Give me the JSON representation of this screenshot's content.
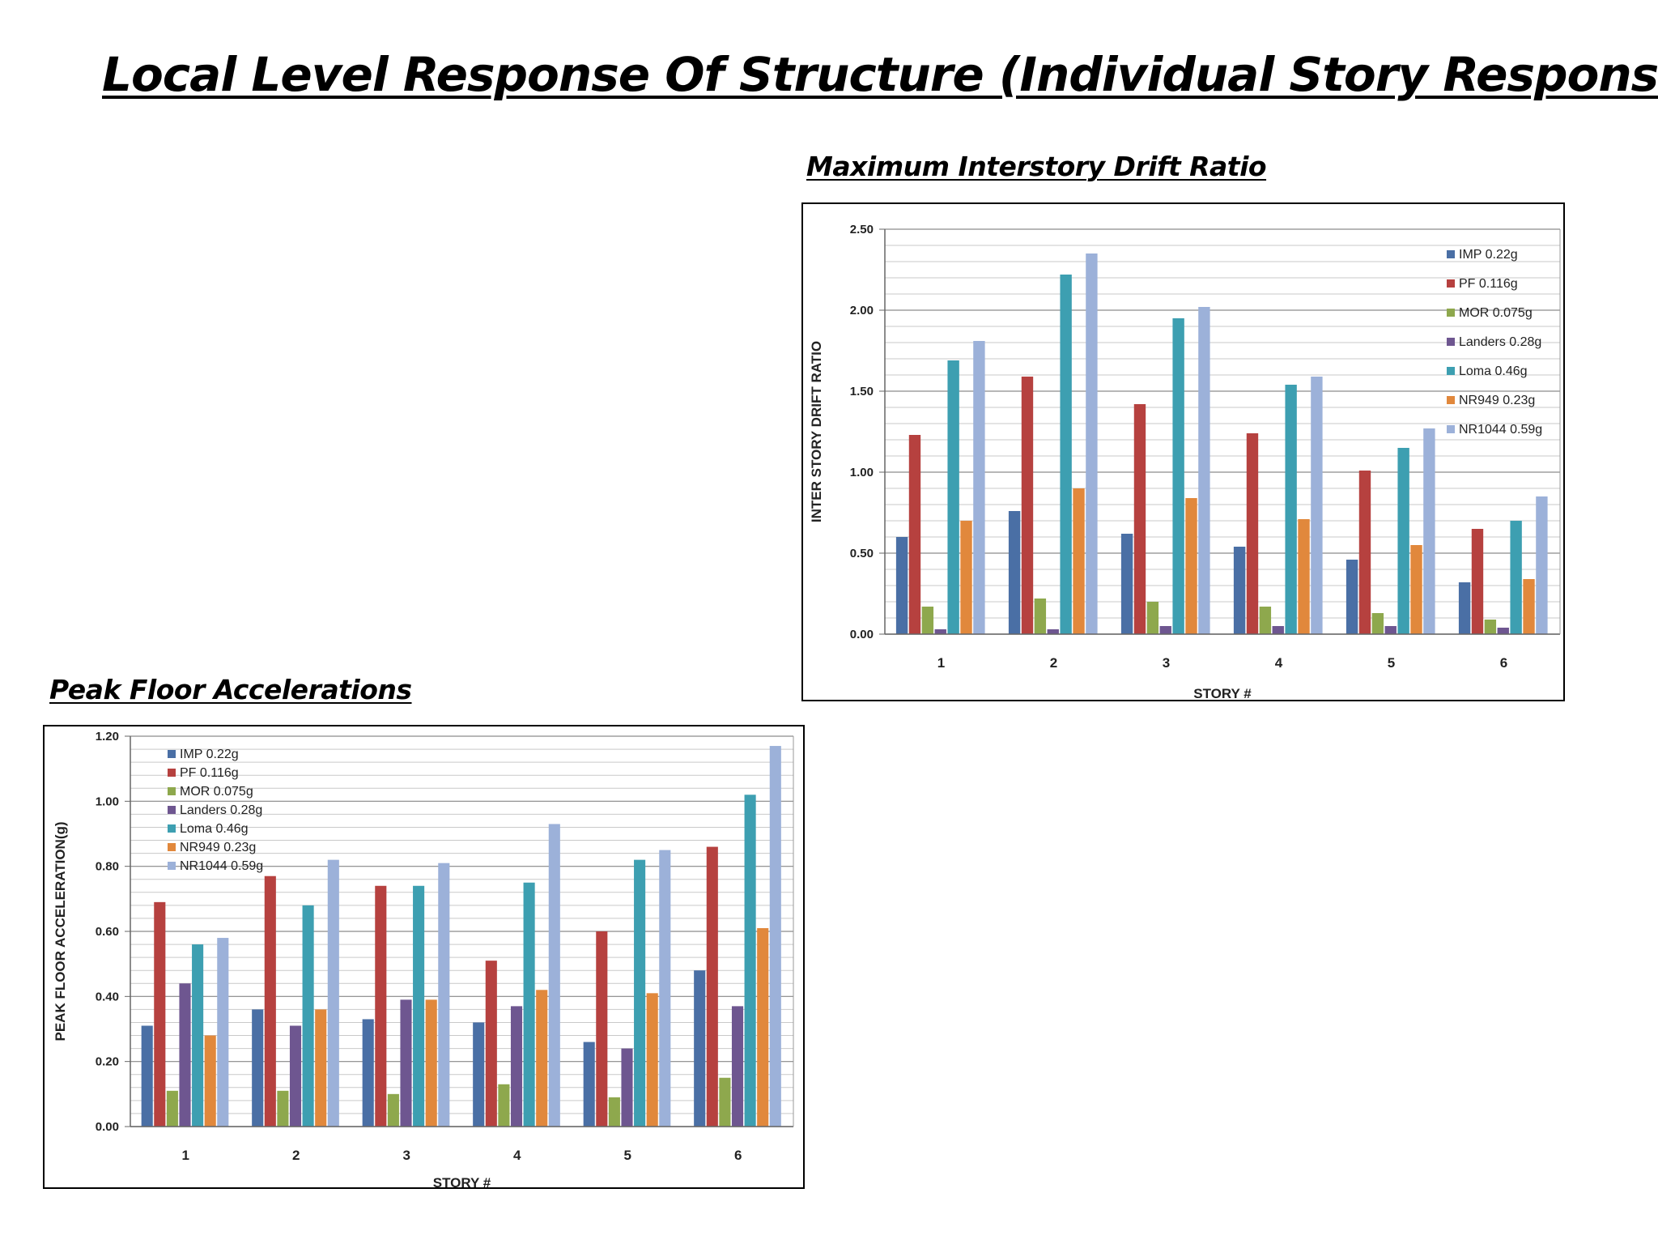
{
  "page": {
    "title": "Local Level Response Of Structure (Individual Story Response)"
  },
  "charts": {
    "drift": {
      "section_title": "Maximum Interstory Drift Ratio",
      "type": "bar",
      "ylabel": "INTER STORY DRIFT RATIO",
      "xlabel": "STORY #",
      "ylim": [
        0,
        2.5
      ],
      "yticks": [
        0,
        0.5,
        1.0,
        1.5,
        2.0,
        2.5
      ],
      "tick_decimals": 2,
      "grid": true,
      "legend": "top-right",
      "categories": [
        "1",
        "2",
        "3",
        "4",
        "5",
        "6"
      ],
      "series": [
        {
          "name": "IMP 0.22g",
          "color": "#4a6fa5",
          "values": [
            0.6,
            0.76,
            0.62,
            0.54,
            0.46,
            0.32
          ]
        },
        {
          "name": "PF 0.116g",
          "color": "#b6413f",
          "values": [
            1.23,
            1.59,
            1.42,
            1.24,
            1.01,
            0.65
          ]
        },
        {
          "name": "MOR 0.075g",
          "color": "#8ea84d",
          "values": [
            0.17,
            0.22,
            0.2,
            0.17,
            0.13,
            0.09
          ]
        },
        {
          "name": "Landers 0.28g",
          "color": "#6e5690",
          "values": [
            0.03,
            0.03,
            0.05,
            0.05,
            0.05,
            0.04
          ]
        },
        {
          "name": "Loma 0.46g",
          "color": "#3d9fb1",
          "values": [
            1.69,
            2.22,
            1.95,
            1.54,
            1.15,
            0.7
          ]
        },
        {
          "name": "NR949 0.23g",
          "color": "#e1883c",
          "values": [
            0.7,
            0.9,
            0.84,
            0.71,
            0.55,
            0.34
          ]
        },
        {
          "name": "NR1044 0.59g",
          "color": "#9cb1d9",
          "values": [
            1.81,
            2.35,
            2.02,
            1.59,
            1.27,
            0.85
          ]
        }
      ]
    },
    "pfa": {
      "section_title": "Peak Floor Accelerations",
      "type": "bar",
      "ylabel": "PEAK FLOOR ACCELERATION(g)",
      "xlabel": "STORY #",
      "ylim": [
        0,
        1.2
      ],
      "yticks": [
        0,
        0.2,
        0.4,
        0.6,
        0.8,
        1.0,
        1.2
      ],
      "tick_decimals": 2,
      "grid": true,
      "legend": "top-left",
      "categories": [
        "1",
        "2",
        "3",
        "4",
        "5",
        "6"
      ],
      "series": [
        {
          "name": "IMP 0.22g",
          "color": "#4a6fa5",
          "values": [
            0.31,
            0.36,
            0.33,
            0.32,
            0.26,
            0.48
          ]
        },
        {
          "name": "PF 0.116g",
          "color": "#b6413f",
          "values": [
            0.69,
            0.77,
            0.74,
            0.51,
            0.6,
            0.86
          ]
        },
        {
          "name": "MOR 0.075g",
          "color": "#8ea84d",
          "values": [
            0.11,
            0.11,
            0.1,
            0.13,
            0.09,
            0.15
          ]
        },
        {
          "name": "Landers 0.28g",
          "color": "#6e5690",
          "values": [
            0.44,
            0.31,
            0.39,
            0.37,
            0.24,
            0.37
          ]
        },
        {
          "name": "Loma 0.46g",
          "color": "#3d9fb1",
          "values": [
            0.56,
            0.68,
            0.74,
            0.75,
            0.82,
            1.02
          ]
        },
        {
          "name": "NR949 0.23g",
          "color": "#e1883c",
          "values": [
            0.28,
            0.36,
            0.39,
            0.42,
            0.41,
            0.61
          ]
        },
        {
          "name": "NR1044 0.59g",
          "color": "#9cb1d9",
          "values": [
            0.58,
            0.82,
            0.81,
            0.93,
            0.85,
            1.17
          ]
        }
      ]
    }
  },
  "chart_data": [
    {
      "type": "bar",
      "title": "Maximum Interstory Drift Ratio",
      "xlabel": "STORY #",
      "ylabel": "INTER STORY DRIFT RATIO",
      "ylim": [
        0,
        2.5
      ],
      "categories": [
        "1",
        "2",
        "3",
        "4",
        "5",
        "6"
      ],
      "series": [
        {
          "name": "IMP 0.22g",
          "values": [
            0.6,
            0.76,
            0.62,
            0.54,
            0.46,
            0.32
          ]
        },
        {
          "name": "PF 0.116g",
          "values": [
            1.23,
            1.59,
            1.42,
            1.24,
            1.01,
            0.65
          ]
        },
        {
          "name": "MOR 0.075g",
          "values": [
            0.17,
            0.22,
            0.2,
            0.17,
            0.13,
            0.09
          ]
        },
        {
          "name": "Landers 0.28g",
          "values": [
            0.03,
            0.03,
            0.05,
            0.05,
            0.05,
            0.04
          ]
        },
        {
          "name": "Loma 0.46g",
          "values": [
            1.69,
            2.22,
            1.95,
            1.54,
            1.15,
            0.7
          ]
        },
        {
          "name": "NR949 0.23g",
          "values": [
            0.7,
            0.9,
            0.84,
            0.71,
            0.55,
            0.34
          ]
        },
        {
          "name": "NR1044 0.59g",
          "values": [
            1.81,
            2.35,
            2.02,
            1.59,
            1.27,
            0.85
          ]
        }
      ]
    },
    {
      "type": "bar",
      "title": "Peak Floor Accelerations",
      "xlabel": "STORY #",
      "ylabel": "PEAK FLOOR ACCELERATION(g)",
      "ylim": [
        0,
        1.2
      ],
      "categories": [
        "1",
        "2",
        "3",
        "4",
        "5",
        "6"
      ],
      "series": [
        {
          "name": "IMP 0.22g",
          "values": [
            0.31,
            0.36,
            0.33,
            0.32,
            0.26,
            0.48
          ]
        },
        {
          "name": "PF 0.116g",
          "values": [
            0.69,
            0.77,
            0.74,
            0.51,
            0.6,
            0.86
          ]
        },
        {
          "name": "MOR 0.075g",
          "values": [
            0.11,
            0.11,
            0.1,
            0.13,
            0.09,
            0.15
          ]
        },
        {
          "name": "Landers 0.28g",
          "values": [
            0.44,
            0.31,
            0.39,
            0.37,
            0.24,
            0.37
          ]
        },
        {
          "name": "Loma 0.46g",
          "values": [
            0.56,
            0.68,
            0.74,
            0.75,
            0.82,
            1.02
          ]
        },
        {
          "name": "NR949 0.23g",
          "values": [
            0.28,
            0.36,
            0.39,
            0.42,
            0.41,
            0.61
          ]
        },
        {
          "name": "NR1044 0.59g",
          "values": [
            0.58,
            0.82,
            0.81,
            0.93,
            0.85,
            1.17
          ]
        }
      ]
    }
  ]
}
